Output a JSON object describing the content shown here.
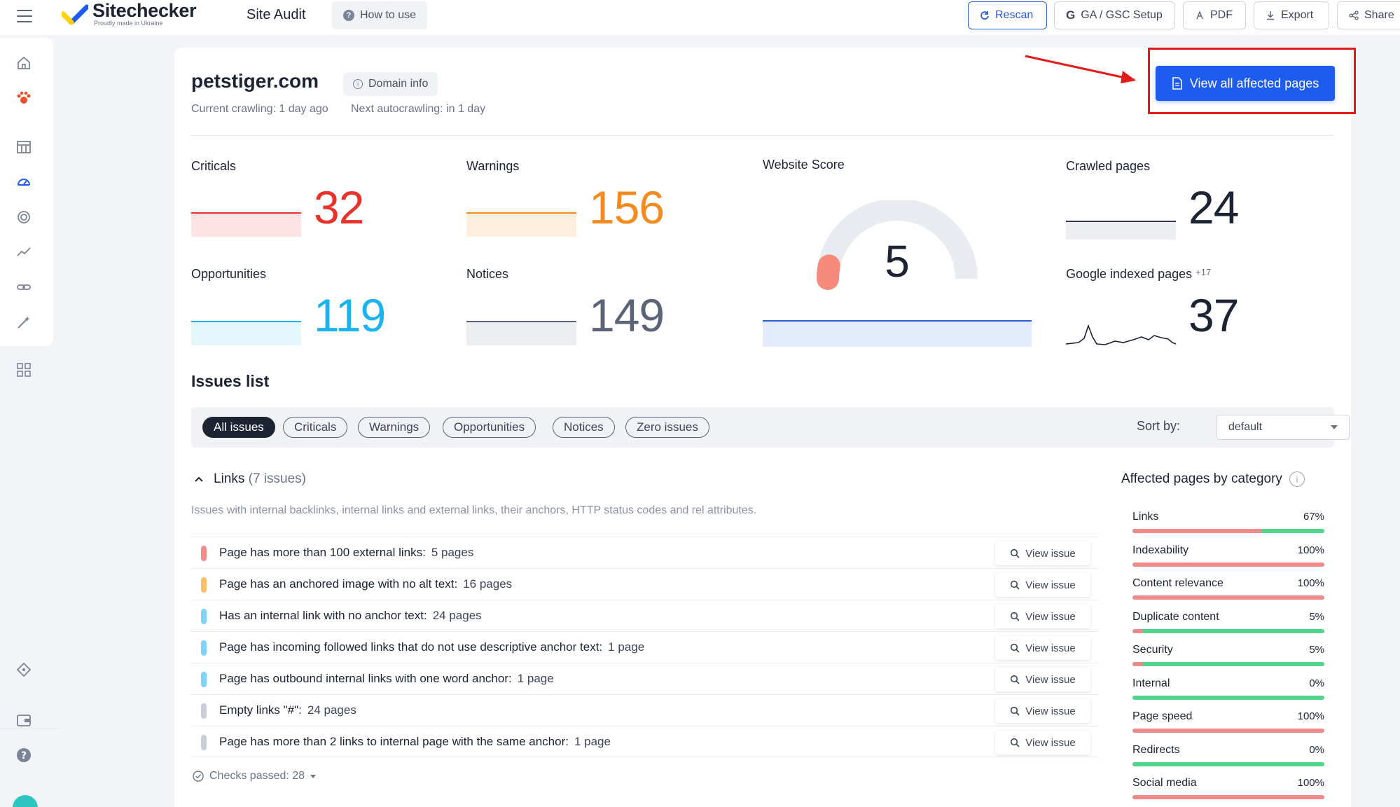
{
  "app": {
    "logo_title": "Sitechecker",
    "logo_subtitle": "Proudly made in Ukraine",
    "section_title": "Site Audit",
    "how_to_use": "How to use"
  },
  "toolbar": {
    "rescan": "Rescan",
    "ga_gsc": "GA / GSC Setup",
    "pdf": "PDF",
    "export": "Export",
    "share": "Share"
  },
  "header": {
    "domain": "petstiger.com",
    "domain_info": "Domain info",
    "current_crawling": "Current crawling: 1 day ago",
    "next_autocrawling": "Next autocrawling: in 1 day",
    "view_all_button": "View all affected pages"
  },
  "metrics": {
    "criticals": {
      "label": "Criticals",
      "value": "32",
      "color": "#e8332b"
    },
    "warnings": {
      "label": "Warnings",
      "value": "156",
      "color": "#f58a1f"
    },
    "opportunities": {
      "label": "Opportunities",
      "value": "119",
      "color": "#1ab3f0"
    },
    "notices": {
      "label": "Notices",
      "value": "149",
      "color": "#5b6477"
    },
    "website_score": {
      "label": "Website Score",
      "value": "5",
      "score": 5
    },
    "crawled_pages": {
      "label": "Crawled pages",
      "value": "24"
    },
    "google_indexed": {
      "label": "Google indexed pages",
      "delta": "+17",
      "value": "37"
    }
  },
  "issues": {
    "title": "Issues list",
    "filters": [
      "All issues",
      "Criticals",
      "Warnings",
      "Opportunities",
      "Notices",
      "Zero issues"
    ],
    "active_filter": "All issues",
    "sort_label": "Sort by:",
    "sort_value": "default",
    "group": {
      "name": "Links",
      "count": "(7 issues)",
      "description": "Issues with internal backlinks, internal links and external links, their anchors, HTTP status codes and rel attributes."
    },
    "view_issue_label": "View issue",
    "rows": [
      {
        "text": "Page has more than 100 external links:",
        "pages": "5 pages",
        "color": "#f28b8b"
      },
      {
        "text": "Page has an anchored image with no alt text:",
        "pages": "16 pages",
        "color": "#fbbf6b"
      },
      {
        "text": "Has an internal link with no anchor text:",
        "pages": "24 pages",
        "color": "#7fd3f7"
      },
      {
        "text": "Page has incoming followed links that do not use descriptive anchor text:",
        "pages": "1 page",
        "color": "#7fd3f7"
      },
      {
        "text": "Page has outbound internal links with one word anchor:",
        "pages": "1 page",
        "color": "#7fd3f7"
      },
      {
        "text": "Empty links \"#\":",
        "pages": "24 pages",
        "color": "#c9ced8"
      },
      {
        "text": "Page has more than 2 links to internal page with the same anchor:",
        "pages": "1 page",
        "color": "#c9ced8"
      }
    ],
    "checks_passed": "Checks passed: 28"
  },
  "categories": {
    "title": "Affected pages by category",
    "items": [
      {
        "name": "Links",
        "pct": "67%",
        "value": 0.67
      },
      {
        "name": "Indexability",
        "pct": "100%",
        "value": 1.0
      },
      {
        "name": "Content relevance",
        "pct": "100%",
        "value": 1.0
      },
      {
        "name": "Duplicate content",
        "pct": "5%",
        "value": 0.05
      },
      {
        "name": "Security",
        "pct": "5%",
        "value": 0.05
      },
      {
        "name": "Internal",
        "pct": "0%",
        "value": 0.0
      },
      {
        "name": "Page speed",
        "pct": "100%",
        "value": 1.0
      },
      {
        "name": "Redirects",
        "pct": "0%",
        "value": 0.0
      },
      {
        "name": "Social media",
        "pct": "100%",
        "value": 1.0
      }
    ]
  },
  "colors": {
    "accent": "#1e5cf0",
    "highlight": "#e21b1b",
    "ok": "#4fd68a",
    "bad": "#f08a8a"
  }
}
